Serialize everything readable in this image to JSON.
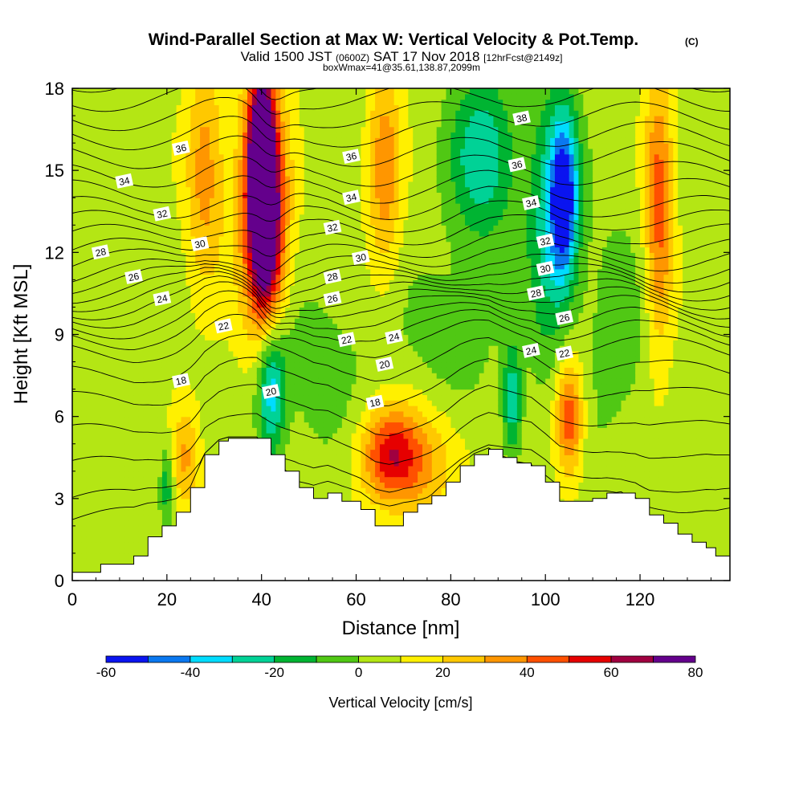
{
  "chart_data": {
    "type": "heatmap",
    "title": "Wind-Parallel Section at Max W: Vertical Velocity & Pot.Temp.",
    "title_mark": "(C)",
    "subtitle": {
      "valid_prefix": "Valid 1500 JST",
      "utc": "(0600Z)",
      "date": "SAT 17 Nov 2018",
      "forecast": "[12hrFcst@2149z]"
    },
    "note": "boxWmax=41@35.61,138.87,2099m",
    "xlabel": "Distance [nm]",
    "ylabel": "Height [Kft MSL]",
    "xlim": [
      0,
      139
    ],
    "ylim": [
      0,
      18
    ],
    "x_ticks": [
      0,
      20,
      40,
      60,
      80,
      100,
      120
    ],
    "y_ticks": [
      0,
      3,
      6,
      9,
      12,
      15,
      18
    ],
    "grid": false,
    "colorbar": {
      "title": "Vertical Velocity [cm/s]",
      "boundaries": [
        -60,
        -50,
        -40,
        -30,
        -20,
        -10,
        0,
        10,
        20,
        30,
        40,
        50,
        60,
        70,
        80
      ],
      "tick_labels": [
        "-60",
        "-40",
        "-20",
        "0",
        "20",
        "40",
        "60",
        "80"
      ],
      "colors": [
        "#0a14f0",
        "#0a78f0",
        "#00dcff",
        "#00d296",
        "#00b432",
        "#50c814",
        "#b4e614",
        "#fff000",
        "#ffc800",
        "#ff9600",
        "#ff5000",
        "#e60000",
        "#a00040",
        "#64008c"
      ]
    },
    "terrain_profile": {
      "x": [
        0,
        6,
        13,
        16,
        19,
        22,
        25,
        28,
        31,
        33,
        36,
        39,
        42,
        45,
        48,
        51,
        54,
        57,
        61,
        64,
        67,
        70,
        73,
        76,
        79,
        82,
        85,
        88,
        91,
        94,
        97,
        100,
        103,
        107,
        110,
        113,
        116,
        119,
        122,
        125,
        128,
        131,
        134,
        136,
        139
      ],
      "y": [
        0.3,
        0.6,
        0.9,
        1.6,
        2.0,
        2.5,
        3.4,
        4.6,
        5.1,
        5.2,
        5.2,
        5.2,
        4.6,
        4.0,
        3.4,
        3.0,
        3.2,
        2.9,
        2.6,
        2.0,
        2.0,
        2.5,
        2.8,
        3.1,
        3.6,
        4.2,
        4.6,
        4.8,
        4.5,
        4.3,
        4.2,
        3.6,
        2.9,
        2.9,
        3.0,
        3.2,
        3.2,
        3.0,
        2.4,
        2.1,
        1.7,
        1.4,
        1.2,
        0.9,
        0.9
      ]
    },
    "vertical_velocity_features": [
      {
        "x": 40,
        "y": 15.5,
        "w": 80,
        "rx": 2.5,
        "ry": 3.0
      },
      {
        "x": 41,
        "y": 12.5,
        "w": 55,
        "rx": 3.5,
        "ry": 3.5
      },
      {
        "x": 40,
        "y": 14.0,
        "w": 40,
        "rx": 5.5,
        "ry": 5.0
      },
      {
        "x": 67,
        "y": 4.6,
        "w": 35,
        "rx": 6.0,
        "ry": 1.6
      },
      {
        "x": 73,
        "y": 4.4,
        "w": 25,
        "rx": 10.0,
        "ry": 2.2
      },
      {
        "x": 105,
        "y": 6.0,
        "w": 45,
        "rx": 3.0,
        "ry": 2.2
      },
      {
        "x": 24,
        "y": 4.5,
        "w": 25,
        "rx": 3.0,
        "ry": 2.0
      },
      {
        "x": 124,
        "y": 13.5,
        "w": 40,
        "rx": 3.0,
        "ry": 5.0
      },
      {
        "x": 66,
        "y": 15.0,
        "w": 30,
        "rx": 3.5,
        "ry": 4.0
      },
      {
        "x": 28,
        "y": 15.0,
        "w": 30,
        "rx": 4.0,
        "ry": 4.0
      },
      {
        "x": 87,
        "y": 15.5,
        "w": -35,
        "rx": 7.0,
        "ry": 3.0
      },
      {
        "x": 104,
        "y": 14.0,
        "w": -55,
        "rx": 3.0,
        "ry": 3.0
      },
      {
        "x": 101,
        "y": 13.0,
        "w": -30,
        "rx": 5.0,
        "ry": 5.0
      },
      {
        "x": 42,
        "y": 7.0,
        "w": -45,
        "rx": 3.0,
        "ry": 2.5
      },
      {
        "x": 93,
        "y": 6.5,
        "w": -35,
        "rx": 2.0,
        "ry": 2.0
      },
      {
        "x": 20,
        "y": 3.5,
        "w": -25,
        "rx": 1.5,
        "ry": 1.5
      },
      {
        "x": 52,
        "y": 8.0,
        "w": -12,
        "rx": 10.0,
        "ry": 3.0
      },
      {
        "x": 80,
        "y": 9.0,
        "w": -12,
        "rx": 10.0,
        "ry": 3.0
      },
      {
        "x": 115,
        "y": 9.0,
        "w": -10,
        "rx": 8.0,
        "ry": 5.0
      }
    ],
    "isentropes": {
      "levels": [
        14,
        15,
        16,
        17,
        18,
        19,
        20,
        21,
        22,
        23,
        24,
        25,
        26,
        27,
        28,
        29,
        30,
        31,
        32,
        33,
        34,
        35,
        36,
        37,
        38,
        39,
        40
      ],
      "base_height": [
        3.0,
        3.6,
        4.7,
        5.8,
        6.9,
        7.8,
        8.6,
        9.1,
        9.5,
        9.9,
        10.2,
        10.5,
        10.8,
        11.1,
        11.4,
        11.8,
        12.2,
        12.7,
        13.2,
        13.7,
        14.3,
        14.9,
        15.6,
        16.3,
        17.0,
        17.7,
        18.4
      ],
      "labels": [
        {
          "text": "36",
          "x": 23,
          "y": 15.8
        },
        {
          "text": "34",
          "x": 11,
          "y": 14.6
        },
        {
          "text": "32",
          "x": 19,
          "y": 13.4
        },
        {
          "text": "30",
          "x": 27,
          "y": 12.3
        },
        {
          "text": "28",
          "x": 6,
          "y": 12.0
        },
        {
          "text": "26",
          "x": 13,
          "y": 11.1
        },
        {
          "text": "24",
          "x": 19,
          "y": 10.3
        },
        {
          "text": "22",
          "x": 32,
          "y": 9.3
        },
        {
          "text": "18",
          "x": 23,
          "y": 7.3
        },
        {
          "text": "20",
          "x": 42,
          "y": 6.9
        },
        {
          "text": "36",
          "x": 59,
          "y": 15.5
        },
        {
          "text": "34",
          "x": 59,
          "y": 14.0
        },
        {
          "text": "32",
          "x": 55,
          "y": 12.9
        },
        {
          "text": "30",
          "x": 61,
          "y": 11.8
        },
        {
          "text": "28",
          "x": 55,
          "y": 11.1
        },
        {
          "text": "26",
          "x": 55,
          "y": 10.3
        },
        {
          "text": "22",
          "x": 58,
          "y": 8.8
        },
        {
          "text": "24",
          "x": 68,
          "y": 8.9
        },
        {
          "text": "20",
          "x": 66,
          "y": 7.9
        },
        {
          "text": "18",
          "x": 64,
          "y": 6.5
        },
        {
          "text": "38",
          "x": 95,
          "y": 16.9
        },
        {
          "text": "36",
          "x": 94,
          "y": 15.2
        },
        {
          "text": "34",
          "x": 97,
          "y": 13.8
        },
        {
          "text": "32",
          "x": 100,
          "y": 12.4
        },
        {
          "text": "30",
          "x": 100,
          "y": 11.4
        },
        {
          "text": "28",
          "x": 98,
          "y": 10.5
        },
        {
          "text": "26",
          "x": 104,
          "y": 9.6
        },
        {
          "text": "24",
          "x": 97,
          "y": 8.4
        },
        {
          "text": "22",
          "x": 104,
          "y": 8.3
        }
      ]
    }
  }
}
